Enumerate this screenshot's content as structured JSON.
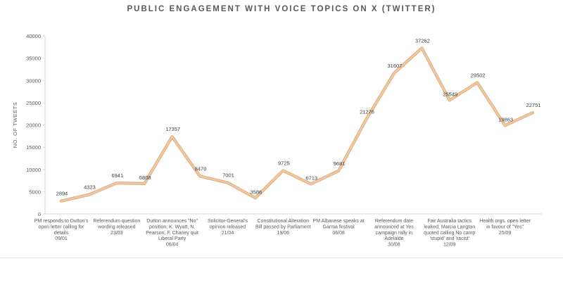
{
  "chart_data": {
    "type": "line",
    "title": "PUBLIC ENGAGEMENT WITH VOICE TOPICS ON X (TWITTER)",
    "ylabel": "NO. OF TWEETS",
    "xlabel": "",
    "ylim": [
      0,
      40000
    ],
    "yticks": [
      0,
      5000,
      10000,
      15000,
      20000,
      25000,
      30000,
      35000,
      40000
    ],
    "grid": false,
    "line_color": "#f2c8a0",
    "values": [
      2894,
      4323,
      6941,
      6808,
      17357,
      8470,
      7001,
      3586,
      9725,
      6713,
      9681,
      21276,
      31607,
      37262,
      25549,
      29502,
      19863,
      22751
    ],
    "category_labels": [
      {
        "index": 0,
        "lines": [
          "PM responds to Dutton's",
          "open letter calling for",
          "details",
          "09/01"
        ]
      },
      {
        "index": 2,
        "lines": [
          "Referendum question",
          "wording released",
          "23/03"
        ]
      },
      {
        "index": 4,
        "lines": [
          "Dutton announces \"No\"",
          "position; K. Wyatt, N.",
          "Pearson, F. Chaney quit",
          "Liberal Party",
          "06/04"
        ]
      },
      {
        "index": 6,
        "lines": [
          "Solicitor-General's",
          "opinion released",
          "21/04"
        ]
      },
      {
        "index": 8,
        "lines": [
          "Constitutional Alteration",
          "Bill passed by Parliament",
          "19/06"
        ]
      },
      {
        "index": 10,
        "lines": [
          "PM Albanese speaks at",
          "Garma festival",
          "06/08"
        ]
      },
      {
        "index": 12,
        "lines": [
          "Referendum date",
          "announced at Yes",
          "campaign rally in",
          "Adelaide",
          "30/08"
        ]
      },
      {
        "index": 14,
        "lines": [
          "Fair Australia tactics",
          "leaked; Marcia Langton",
          "quoted calling No camp",
          "'stupid' and 'racist'",
          "12/09"
        ]
      },
      {
        "index": 16,
        "lines": [
          "Health orgs. open letter",
          "in favour of \"Yes\"",
          "25/09"
        ]
      }
    ]
  }
}
